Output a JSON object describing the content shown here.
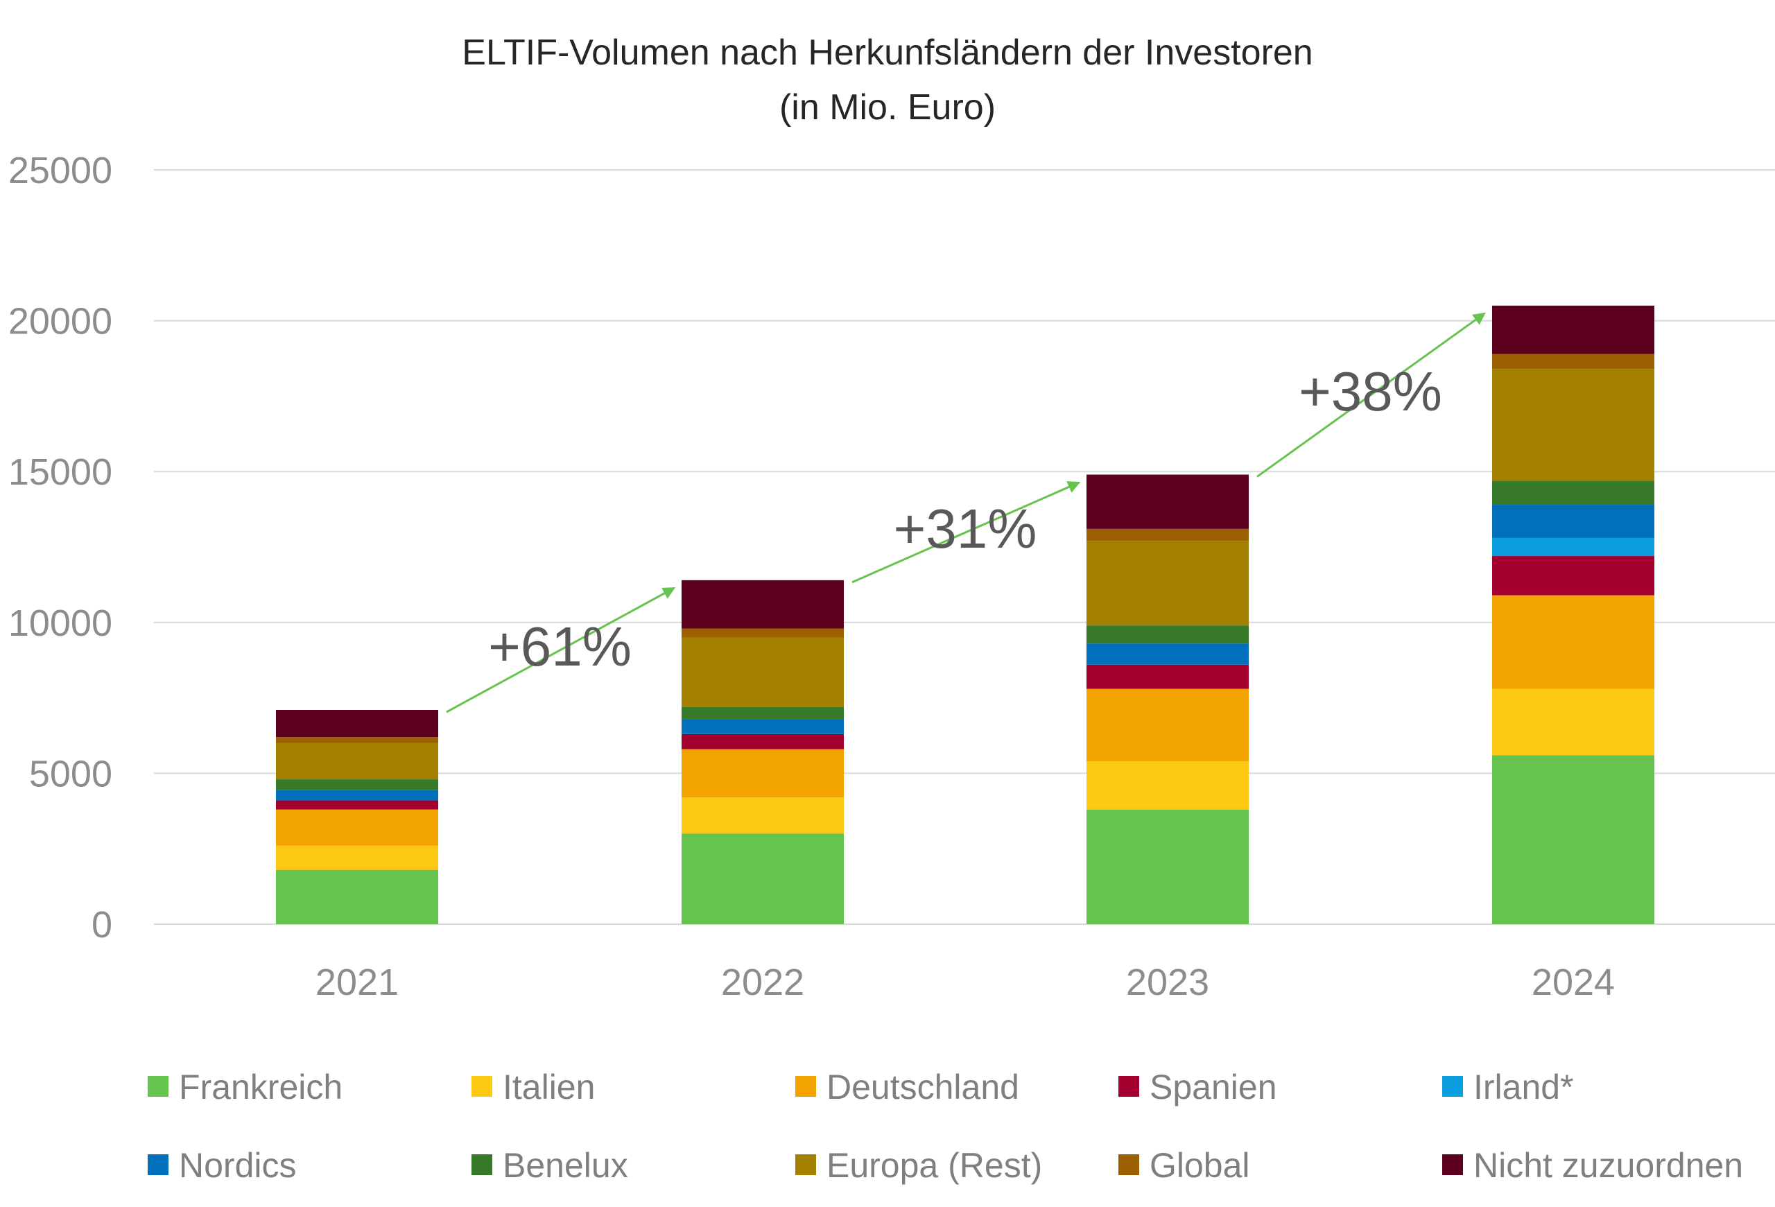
{
  "chart_data": {
    "type": "stacked-bar",
    "title": "ELTIF-Volumen nach Herkunfsländern der Investoren",
    "subtitle": "(in Mio. Euro)",
    "xlabel": "",
    "ylabel": "",
    "ylim": [
      0,
      25000
    ],
    "yticks": [
      0,
      5000,
      10000,
      15000,
      20000,
      25000
    ],
    "grid": true,
    "legend_position": "bottom",
    "categories": [
      "2021",
      "2022",
      "2023",
      "2024"
    ],
    "series": [
      {
        "name": "Frankreich",
        "color": "#66c34e",
        "values": [
          1800,
          3000,
          3800,
          5600
        ]
      },
      {
        "name": "Italien",
        "color": "#fdc814",
        "values": [
          800,
          1200,
          1600,
          2200
        ]
      },
      {
        "name": "Deutschland",
        "color": "#f3a300",
        "values": [
          1200,
          1600,
          2400,
          3100
        ]
      },
      {
        "name": "Spanien",
        "color": "#a30030",
        "values": [
          300,
          500,
          800,
          1300
        ]
      },
      {
        "name": "Irland*",
        "color": "#0a9ee0",
        "values": [
          0,
          0,
          0,
          600
        ]
      },
      {
        "name": "Nordics",
        "color": "#0070bd",
        "values": [
          350,
          500,
          700,
          1100
        ]
      },
      {
        "name": "Benelux",
        "color": "#367a2a",
        "values": [
          350,
          400,
          600,
          800
        ]
      },
      {
        "name": "Europa (Rest)",
        "color": "#a38000",
        "values": [
          1200,
          2300,
          2800,
          3700
        ]
      },
      {
        "name": "Global",
        "color": "#9b6000",
        "values": [
          200,
          300,
          400,
          500
        ]
      },
      {
        "name": "Nicht zuzuordnen",
        "color": "#5c001e",
        "values": [
          900,
          1600,
          1800,
          1600
        ]
      }
    ],
    "annotations": [
      {
        "label": "+61%",
        "from": "2021",
        "to": "2022"
      },
      {
        "label": "+31%",
        "from": "2022",
        "to": "2023"
      },
      {
        "label": "+38%",
        "from": "2023",
        "to": "2024"
      }
    ],
    "arrow_color": "#66c34e",
    "grid_color": "#d9d9d9"
  }
}
